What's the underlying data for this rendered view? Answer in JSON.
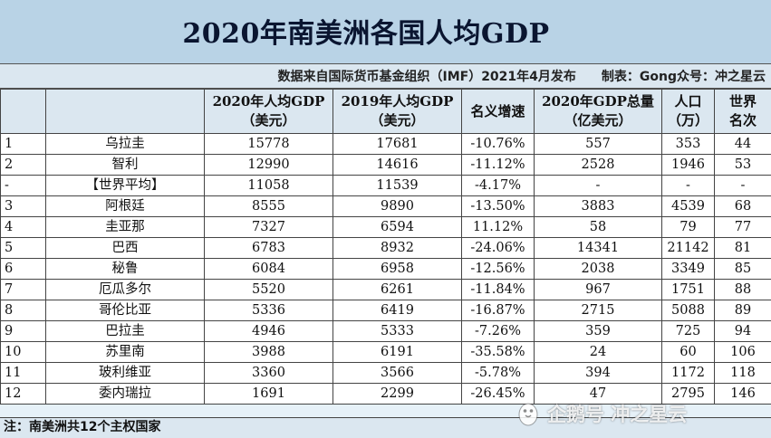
{
  "title": "2020年南美洲各国人均GDP",
  "source_line": "数据来自国际货币基金组织（IMF）2021年4月发布　　制表：Gong众号：冲之星云",
  "headers": {
    "col1": "",
    "col2": "",
    "col3_l1": "2020年人均GDP",
    "col3_l2": "（美元）",
    "col4_l1": "2019年人均GDP",
    "col4_l2": "（美元）",
    "col5_l1": "名义增速",
    "col6_l1": "2020年GDP总量",
    "col6_l2": "（亿美元）",
    "col7_l1": "人口",
    "col7_l2": "（万）",
    "col8_l1": "世界",
    "col8_l2": "名次"
  },
  "rows": [
    {
      "rank": "1",
      "country": "乌拉圭",
      "gdp2020": "15778",
      "gdp2019": "17681",
      "growth": "-10.76%",
      "total": "557",
      "pop": "353",
      "world": "44"
    },
    {
      "rank": "2",
      "country": "智利",
      "gdp2020": "12990",
      "gdp2019": "14616",
      "growth": "-11.12%",
      "total": "2528",
      "pop": "1946",
      "world": "53"
    },
    {
      "rank": "-",
      "country": "【世界平均】",
      "gdp2020": "11058",
      "gdp2019": "11539",
      "growth": "-4.17%",
      "total": "-",
      "pop": "-",
      "world": "-"
    },
    {
      "rank": "3",
      "country": "阿根廷",
      "gdp2020": "8555",
      "gdp2019": "9890",
      "growth": "-13.50%",
      "total": "3883",
      "pop": "4539",
      "world": "68"
    },
    {
      "rank": "4",
      "country": "圭亚那",
      "gdp2020": "7327",
      "gdp2019": "6594",
      "growth": "11.12%",
      "total": "58",
      "pop": "79",
      "world": "77"
    },
    {
      "rank": "5",
      "country": "巴西",
      "gdp2020": "6783",
      "gdp2019": "8932",
      "growth": "-24.06%",
      "total": "14341",
      "pop": "21142",
      "world": "81"
    },
    {
      "rank": "6",
      "country": "秘鲁",
      "gdp2020": "6084",
      "gdp2019": "6958",
      "growth": "-12.56%",
      "total": "2038",
      "pop": "3349",
      "world": "85"
    },
    {
      "rank": "7",
      "country": "厄瓜多尔",
      "gdp2020": "5520",
      "gdp2019": "6261",
      "growth": "-11.84%",
      "total": "967",
      "pop": "1751",
      "world": "88"
    },
    {
      "rank": "8",
      "country": "哥伦比亚",
      "gdp2020": "5336",
      "gdp2019": "6419",
      "growth": "-16.87%",
      "total": "2715",
      "pop": "5088",
      "world": "89"
    },
    {
      "rank": "9",
      "country": "巴拉圭",
      "gdp2020": "4946",
      "gdp2019": "5333",
      "growth": "-7.26%",
      "total": "359",
      "pop": "725",
      "world": "94"
    },
    {
      "rank": "10",
      "country": "苏里南",
      "gdp2020": "3988",
      "gdp2019": "6191",
      "growth": "-35.58%",
      "total": "24",
      "pop": "60",
      "world": "106"
    },
    {
      "rank": "11",
      "country": "玻利维亚",
      "gdp2020": "3360",
      "gdp2019": "3566",
      "growth": "-5.78%",
      "total": "394",
      "pop": "1172",
      "world": "118"
    },
    {
      "rank": "12",
      "country": "委内瑞拉",
      "gdp2020": "1691",
      "gdp2019": "2299",
      "growth": "-26.45%",
      "total": "47",
      "pop": "2795",
      "world": "146"
    }
  ],
  "note": "注：南美洲共12个主权国家",
  "watermark": "企鹅号 冲之星云",
  "colors": {
    "title_bg": "#b9d3e6",
    "header_bg": "#dbe7f0",
    "title_text": "#0a1530"
  }
}
